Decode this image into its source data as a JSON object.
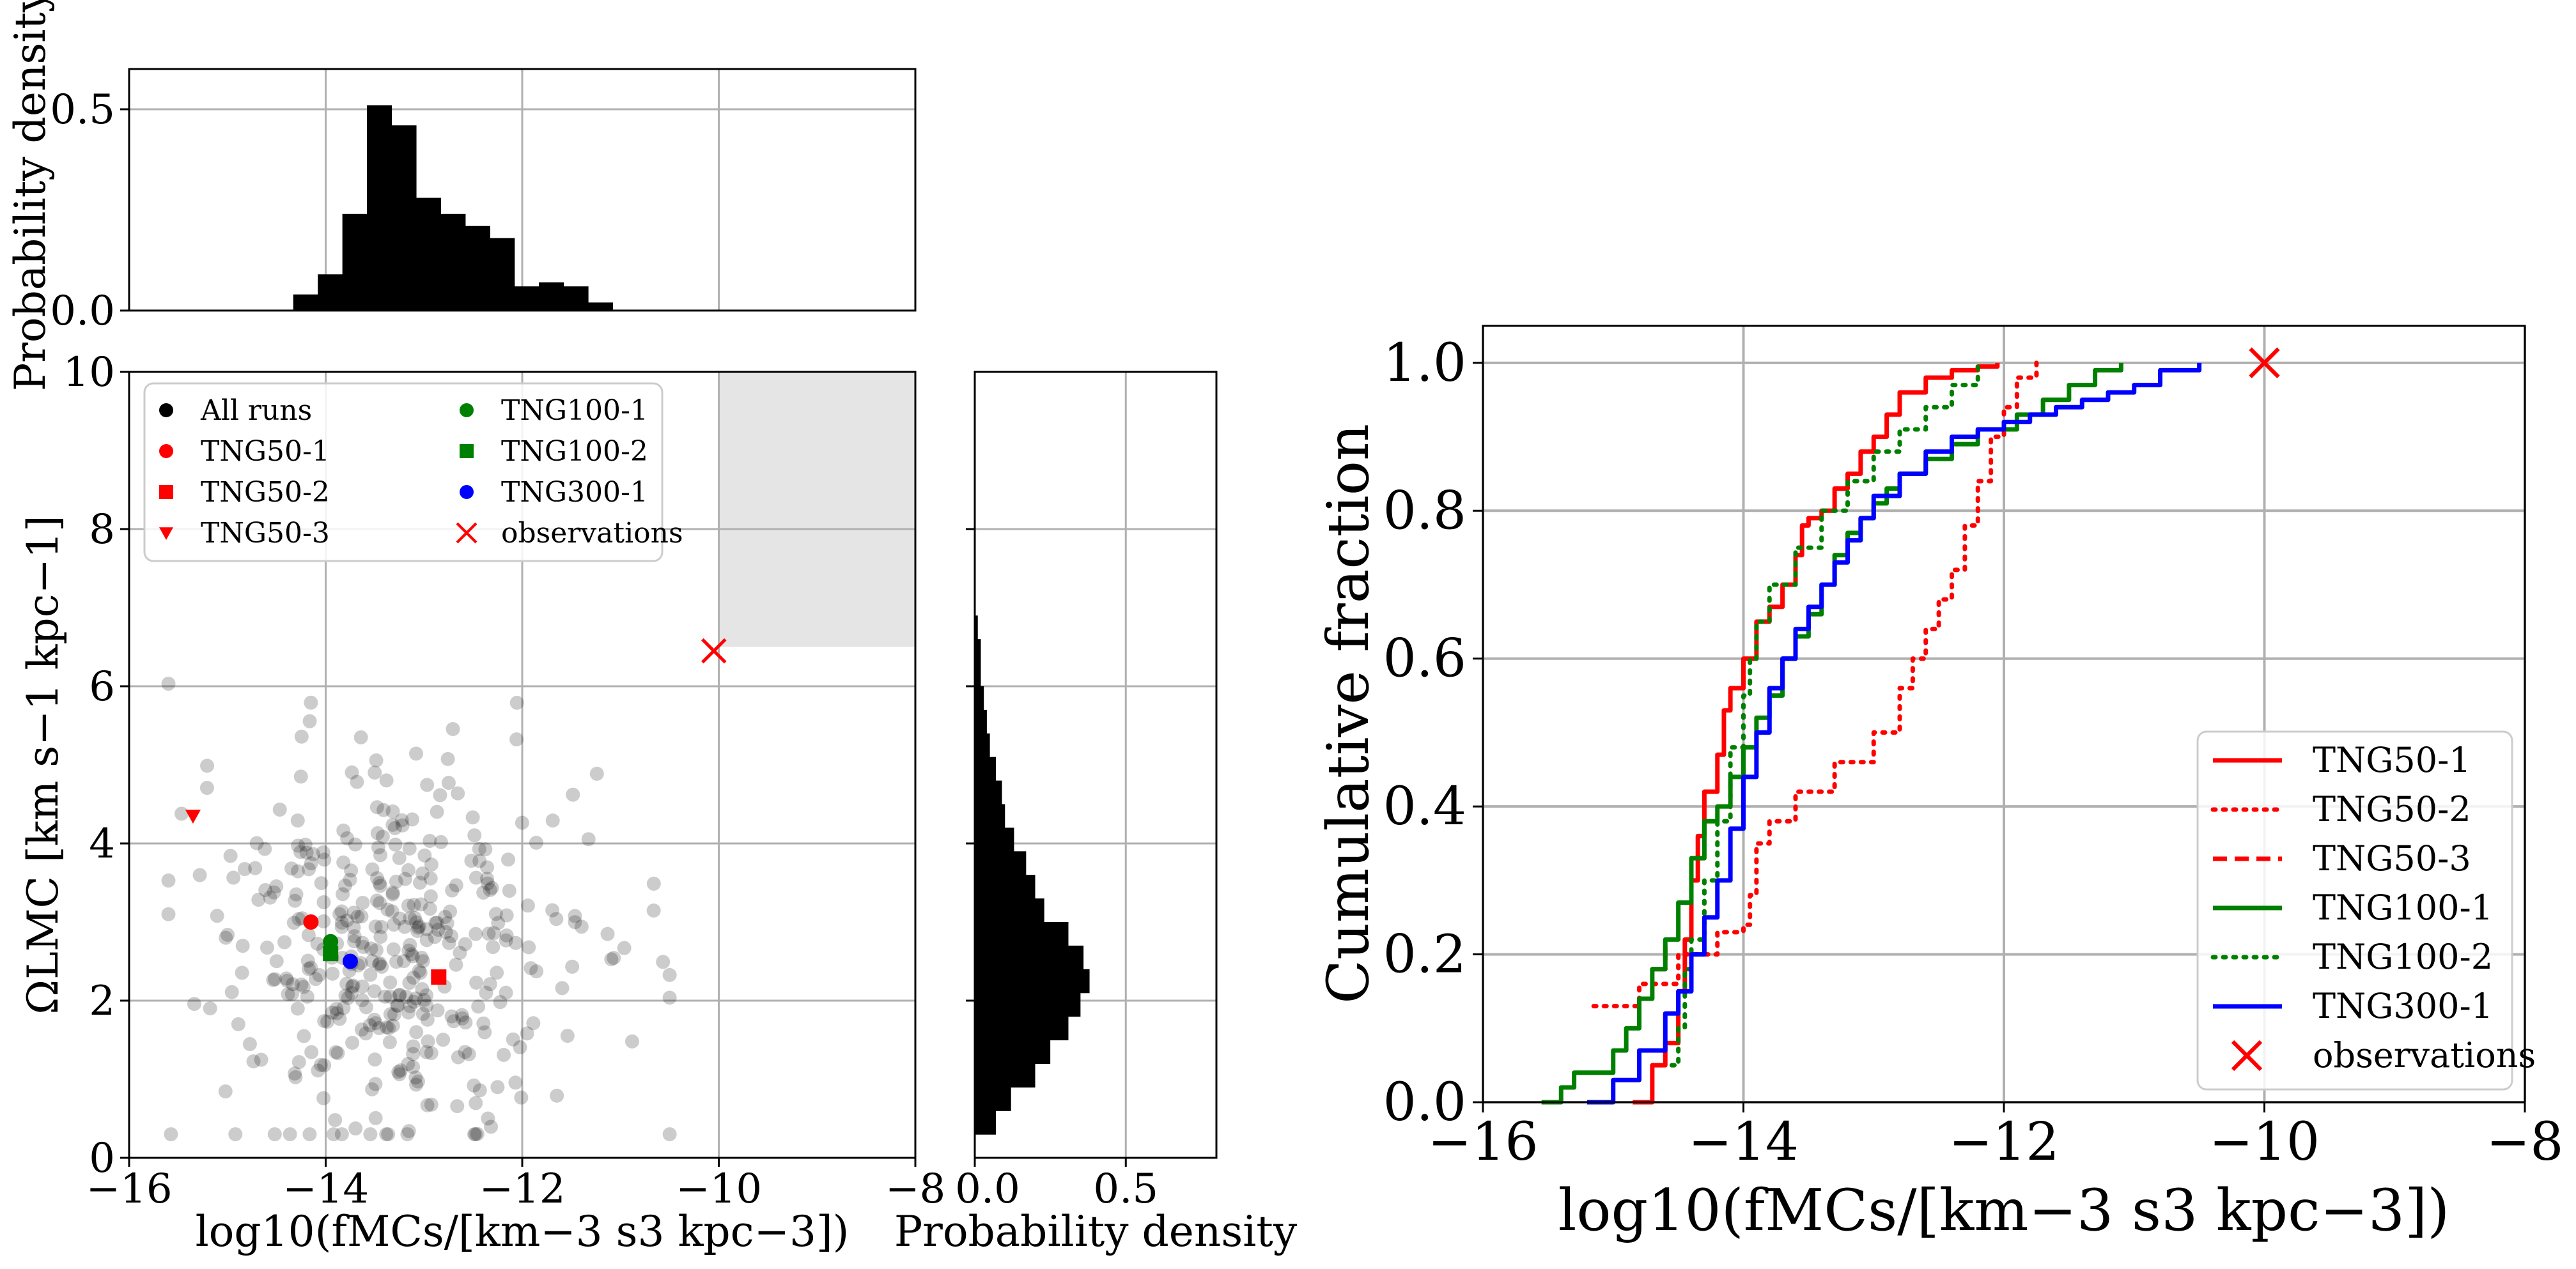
{
  "chart_data": [
    {
      "type": "histogram",
      "name": "top-marginal",
      "ylabel": "Probability density",
      "xlim": [
        -16,
        -8
      ],
      "ylim": [
        0,
        0.6
      ],
      "yticks": [
        {
          "v": 0,
          "label": "0.0"
        },
        {
          "v": 0.5,
          "label": "0.5"
        }
      ],
      "xgrid": [
        -16,
        -14,
        -12,
        -10,
        -8
      ],
      "bin_edges": [
        -14.33,
        -14.08,
        -13.83,
        -13.58,
        -13.33,
        -13.08,
        -12.83,
        -12.58,
        -12.33,
        -12.08,
        -11.83,
        -11.58,
        -11.33,
        -11.08,
        -10.83
      ],
      "values": [
        0.04,
        0.09,
        0.24,
        0.51,
        0.46,
        0.28,
        0.24,
        0.21,
        0.18,
        0.06,
        0.07,
        0.06,
        0.02,
        0.0
      ]
    },
    {
      "type": "scatter",
      "name": "main-scatter",
      "xlabel": "log10(fMCs/[km−3 s3 kpc−3])",
      "ylabel": "ΩLMC [km s−1 kpc−1]",
      "xlim": [
        -16,
        -8
      ],
      "ylim": [
        0,
        10
      ],
      "xticks": [
        {
          "v": -16,
          "label": "−16"
        },
        {
          "v": -14,
          "label": "−14"
        },
        {
          "v": -12,
          "label": "−12"
        },
        {
          "v": -10,
          "label": "−10"
        },
        {
          "v": -8,
          "label": "−8"
        }
      ],
      "yticks": [
        {
          "v": 0,
          "label": "0"
        },
        {
          "v": 2,
          "label": "2"
        },
        {
          "v": 4,
          "label": "4"
        },
        {
          "v": 6,
          "label": "6"
        },
        {
          "v": 8,
          "label": "8"
        },
        {
          "v": 10,
          "label": "10"
        }
      ],
      "shaded_region": {
        "x": [
          -10,
          -8
        ],
        "y": [
          6.5,
          10
        ],
        "color": "#e5e5e5"
      },
      "all_runs_seed": 7,
      "all_runs_count": 400,
      "highlights": [
        {
          "name": "TNG50-1",
          "x": -14.15,
          "y": 3.0,
          "marker": "circle",
          "color": "#ff0000"
        },
        {
          "name": "TNG50-2",
          "x": -12.85,
          "y": 2.3,
          "marker": "square",
          "color": "#ff0000"
        },
        {
          "name": "TNG50-3",
          "x": -15.35,
          "y": 4.35,
          "marker": "triangle-down",
          "color": "#ff0000"
        },
        {
          "name": "TNG100-1",
          "x": -13.95,
          "y": 2.75,
          "marker": "circle",
          "color": "#008000"
        },
        {
          "name": "TNG100-2",
          "x": -13.95,
          "y": 2.6,
          "marker": "square",
          "color": "#008000"
        },
        {
          "name": "TNG300-1",
          "x": -13.75,
          "y": 2.5,
          "marker": "circle",
          "color": "#0000ff"
        },
        {
          "name": "observations",
          "x": -10.05,
          "y": 6.45,
          "marker": "x",
          "color": "#ff0000"
        }
      ],
      "legend": [
        {
          "label": "All runs",
          "marker": "circle",
          "color": "#000000"
        },
        {
          "label": "TNG50-1",
          "marker": "circle",
          "color": "#ff0000"
        },
        {
          "label": "TNG50-2",
          "marker": "square",
          "color": "#ff0000"
        },
        {
          "label": "TNG50-3",
          "marker": "triangle-down",
          "color": "#ff0000"
        },
        {
          "label": "TNG100-1",
          "marker": "circle",
          "color": "#008000"
        },
        {
          "label": "TNG100-2",
          "marker": "square",
          "color": "#008000"
        },
        {
          "label": "TNG300-1",
          "marker": "circle",
          "color": "#0000ff"
        },
        {
          "label": "observations",
          "marker": "x",
          "color": "#ff0000"
        }
      ]
    },
    {
      "type": "histogram",
      "orientation": "horizontal",
      "name": "right-marginal",
      "xlabel": "Probability density",
      "xlim": [
        0,
        0.8
      ],
      "xticks": [
        {
          "v": 0,
          "label": "0.0"
        },
        {
          "v": 0.5,
          "label": "0.5"
        }
      ],
      "bin_edges": [
        0.3,
        0.6,
        0.9,
        1.2,
        1.5,
        1.8,
        2.1,
        2.4,
        2.7,
        3.0,
        3.3,
        3.6,
        3.9,
        4.2,
        4.5,
        4.8,
        5.1,
        5.4,
        5.7,
        6.0,
        6.3,
        6.6,
        6.9
      ],
      "values": [
        0.07,
        0.12,
        0.2,
        0.25,
        0.31,
        0.35,
        0.38,
        0.36,
        0.31,
        0.23,
        0.2,
        0.17,
        0.13,
        0.1,
        0.09,
        0.07,
        0.05,
        0.04,
        0.03,
        0.02,
        0.02,
        0.01
      ]
    },
    {
      "type": "line",
      "name": "cumulative",
      "xlabel": "log10(fMCs/[km−3 s3 kpc−3])",
      "ylabel": "Cumulative fraction",
      "xlim": [
        -16,
        -8
      ],
      "ylim": [
        0,
        1.05
      ],
      "xticks": [
        {
          "v": -16,
          "label": "−16"
        },
        {
          "v": -14,
          "label": "−14"
        },
        {
          "v": -12,
          "label": "−12"
        },
        {
          "v": -10,
          "label": "−10"
        },
        {
          "v": -8,
          "label": "−8"
        }
      ],
      "yticks": [
        {
          "v": 0,
          "label": "0.0"
        },
        {
          "v": 0.2,
          "label": "0.2"
        },
        {
          "v": 0.4,
          "label": "0.4"
        },
        {
          "v": 0.6,
          "label": "0.6"
        },
        {
          "v": 0.8,
          "label": "0.8"
        },
        {
          "v": 1.0,
          "label": "1.0"
        }
      ],
      "series": [
        {
          "name": "TNG50-1",
          "color": "#ff0000",
          "dash": "solid",
          "x": [
            -14.85,
            -14.7,
            -14.6,
            -14.5,
            -14.45,
            -14.4,
            -14.35,
            -14.3,
            -14.2,
            -14.15,
            -14.1,
            -14.0,
            -13.9,
            -13.8,
            -13.7,
            -13.6,
            -13.55,
            -13.5,
            -13.4,
            -13.3,
            -13.2,
            -13.1,
            -13.0,
            -12.9,
            -12.8,
            -12.6,
            -12.4,
            -12.2,
            -12.05
          ],
          "y": [
            0.0,
            0.05,
            0.08,
            0.15,
            0.22,
            0.3,
            0.36,
            0.42,
            0.47,
            0.53,
            0.56,
            0.6,
            0.65,
            0.67,
            0.7,
            0.74,
            0.78,
            0.79,
            0.8,
            0.83,
            0.85,
            0.88,
            0.9,
            0.93,
            0.96,
            0.98,
            0.99,
            0.995,
            1.0
          ]
        },
        {
          "name": "TNG50-2",
          "color": "#ff0000",
          "dash": "dotted",
          "x": [
            -15.15,
            -14.8,
            -14.5,
            -14.2,
            -14.0,
            -13.95,
            -13.9,
            -13.8,
            -13.6,
            -13.3,
            -13.0,
            -12.8,
            -12.7,
            -12.6,
            -12.5,
            -12.4,
            -12.3,
            -12.2,
            -12.1,
            -12.0,
            -11.9,
            -11.75
          ],
          "y": [
            0.13,
            0.16,
            0.2,
            0.23,
            0.24,
            0.28,
            0.35,
            0.38,
            0.42,
            0.46,
            0.5,
            0.56,
            0.6,
            0.64,
            0.68,
            0.72,
            0.78,
            0.84,
            0.9,
            0.94,
            0.98,
            1.0
          ]
        },
        {
          "name": "TNG50-3",
          "color": "#ff0000",
          "dash": "dashed",
          "x": [
            -14.7,
            -14.6
          ],
          "y": [
            0.18,
            0.22
          ]
        },
        {
          "name": "TNG100-1",
          "color": "#008000",
          "dash": "solid",
          "x": [
            -15.55,
            -15.4,
            -15.3,
            -15.0,
            -14.9,
            -14.8,
            -14.7,
            -14.6,
            -14.5,
            -14.4,
            -14.3,
            -14.2,
            -14.1,
            -14.0,
            -13.9,
            -13.8,
            -13.7,
            -13.6,
            -13.5,
            -13.4,
            -13.3,
            -13.2,
            -13.1,
            -13.0,
            -12.9,
            -12.8,
            -12.6,
            -12.4,
            -12.2,
            -11.9,
            -11.7,
            -11.5,
            -11.3,
            -11.1
          ],
          "y": [
            0.0,
            0.02,
            0.04,
            0.07,
            0.1,
            0.14,
            0.18,
            0.22,
            0.27,
            0.33,
            0.38,
            0.4,
            0.44,
            0.48,
            0.52,
            0.55,
            0.6,
            0.63,
            0.66,
            0.7,
            0.74,
            0.77,
            0.79,
            0.81,
            0.83,
            0.85,
            0.87,
            0.89,
            0.91,
            0.93,
            0.95,
            0.97,
            0.99,
            1.0
          ]
        },
        {
          "name": "TNG100-2",
          "color": "#008000",
          "dash": "dotted",
          "x": [
            -14.55,
            -14.5,
            -14.45,
            -14.4,
            -14.3,
            -14.2,
            -14.1,
            -14.0,
            -13.95,
            -13.9,
            -13.8,
            -13.6,
            -13.4,
            -13.2,
            -13.0,
            -12.8,
            -12.6,
            -12.4,
            -12.2
          ],
          "y": [
            0.05,
            0.1,
            0.18,
            0.22,
            0.3,
            0.38,
            0.48,
            0.55,
            0.6,
            0.65,
            0.7,
            0.75,
            0.8,
            0.84,
            0.88,
            0.91,
            0.94,
            0.97,
            1.0
          ]
        },
        {
          "name": "TNG300-1",
          "color": "#0000ff",
          "dash": "solid",
          "x": [
            -15.2,
            -15.0,
            -14.8,
            -14.6,
            -14.5,
            -14.4,
            -14.3,
            -14.2,
            -14.1,
            -14.0,
            -13.9,
            -13.8,
            -13.7,
            -13.6,
            -13.5,
            -13.4,
            -13.3,
            -13.2,
            -13.1,
            -13.0,
            -12.8,
            -12.6,
            -12.4,
            -12.2,
            -12.0,
            -11.8,
            -11.6,
            -11.4,
            -11.2,
            -11.0,
            -10.8,
            -10.5
          ],
          "y": [
            0.0,
            0.03,
            0.07,
            0.12,
            0.15,
            0.2,
            0.25,
            0.3,
            0.37,
            0.44,
            0.5,
            0.56,
            0.6,
            0.64,
            0.67,
            0.7,
            0.73,
            0.76,
            0.79,
            0.82,
            0.85,
            0.88,
            0.9,
            0.91,
            0.92,
            0.93,
            0.94,
            0.95,
            0.96,
            0.97,
            0.99,
            1.0
          ]
        }
      ],
      "observation": {
        "name": "observations",
        "x": -10.0,
        "y": 1.0,
        "color": "#ff0000"
      },
      "legend": [
        "TNG50-1",
        "TNG50-2",
        "TNG50-3",
        "TNG100-1",
        "TNG100-2",
        "TNG300-1",
        "observations"
      ]
    }
  ]
}
